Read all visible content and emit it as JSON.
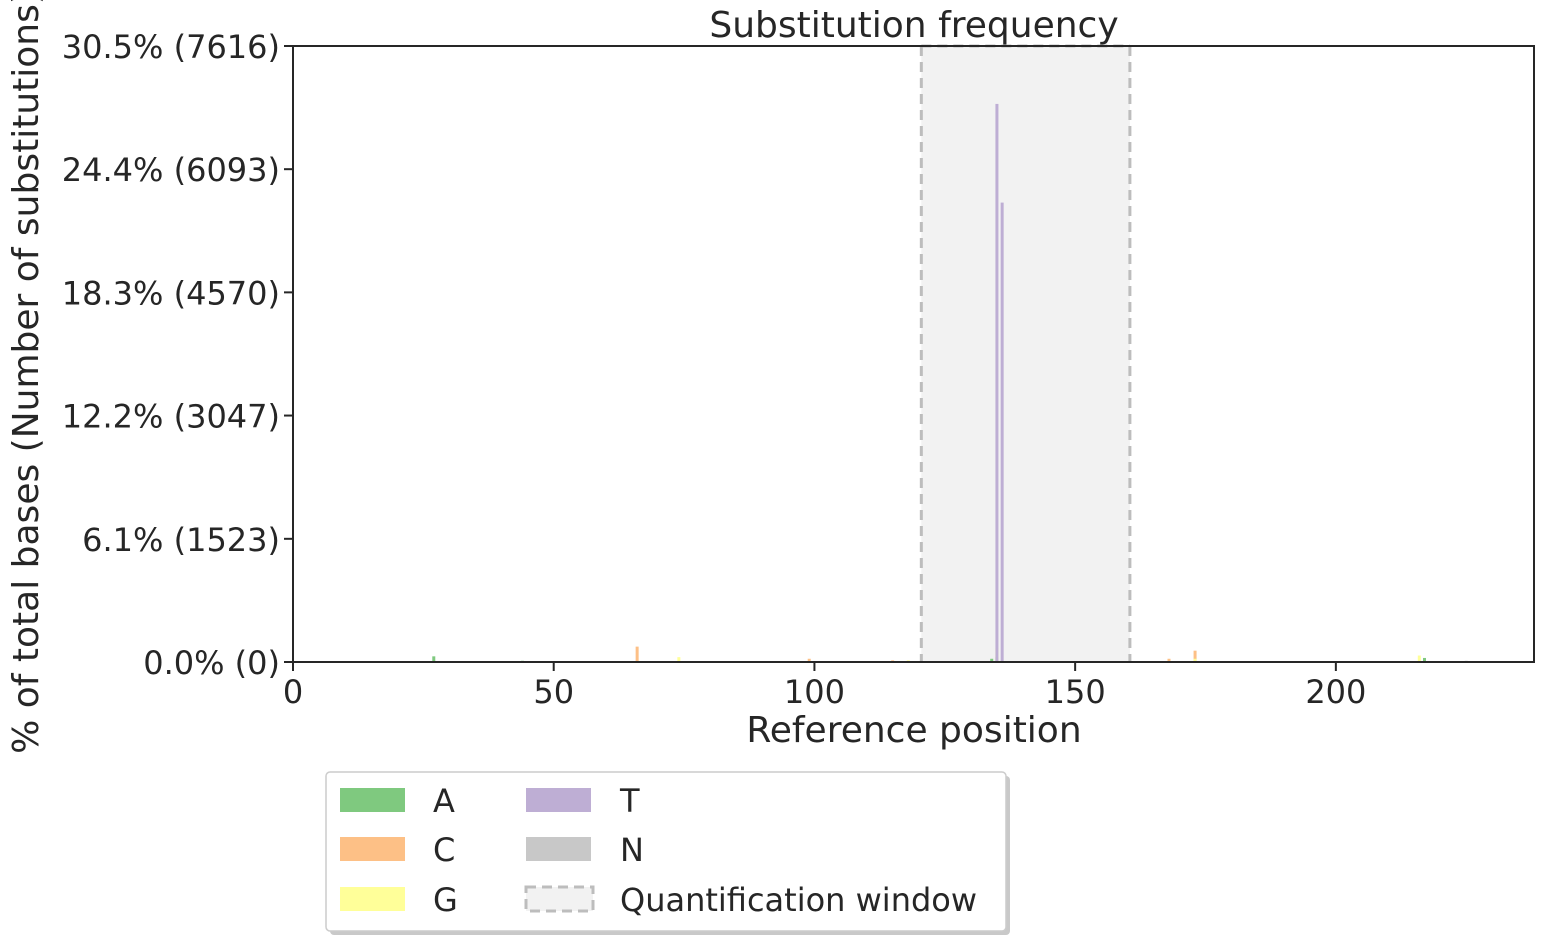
{
  "chart_data": {
    "type": "bar",
    "title": "Substitution frequency",
    "xlabel": "Reference position",
    "ylabel": "% of total bases (Number of substitutions)",
    "xlim": [
      0,
      238
    ],
    "ylim": [
      0,
      7616
    ],
    "x_ticks": [
      0,
      50,
      100,
      150,
      200
    ],
    "y_ticks": [
      {
        "value": 0,
        "label": "0.0% (0)"
      },
      {
        "value": 1523,
        "label": "6.1% (1523)"
      },
      {
        "value": 3047,
        "label": "12.2% (3047)"
      },
      {
        "value": 4570,
        "label": "18.3% (4570)"
      },
      {
        "value": 6093,
        "label": "24.4% (6093)"
      },
      {
        "value": 7616,
        "label": "30.5% (7616)"
      }
    ],
    "quantification_window": {
      "start": 120.5,
      "end": 160.5
    },
    "series": [
      {
        "name": "A",
        "color": "#7fc97f",
        "points": [
          {
            "x": 27,
            "y": 70
          },
          {
            "x": 44,
            "y": 15
          },
          {
            "x": 134,
            "y": 40
          },
          {
            "x": 135,
            "y": 60
          },
          {
            "x": 217,
            "y": 50
          }
        ]
      },
      {
        "name": "C",
        "color": "#fdc086",
        "points": [
          {
            "x": 66,
            "y": 190
          },
          {
            "x": 99,
            "y": 40
          },
          {
            "x": 115,
            "y": 20
          },
          {
            "x": 168,
            "y": 40
          },
          {
            "x": 173,
            "y": 140
          }
        ]
      },
      {
        "name": "G",
        "color": "#ffff99",
        "points": [
          {
            "x": 74,
            "y": 60
          },
          {
            "x": 118,
            "y": 20
          },
          {
            "x": 135,
            "y": 170
          },
          {
            "x": 173,
            "y": 40
          },
          {
            "x": 216,
            "y": 80
          }
        ]
      },
      {
        "name": "T",
        "color": "#beaed4",
        "points": [
          {
            "x": 135,
            "y": 6900
          },
          {
            "x": 136,
            "y": 5680
          }
        ]
      },
      {
        "name": "N",
        "color": "#c8c8c8",
        "points": [
          {
            "x": 225,
            "y": 15
          }
        ]
      }
    ],
    "legend": {
      "placement": "bottom-left, below plot",
      "entries": [
        "A",
        "C",
        "G",
        "T",
        "N",
        "Quantification window"
      ]
    }
  }
}
